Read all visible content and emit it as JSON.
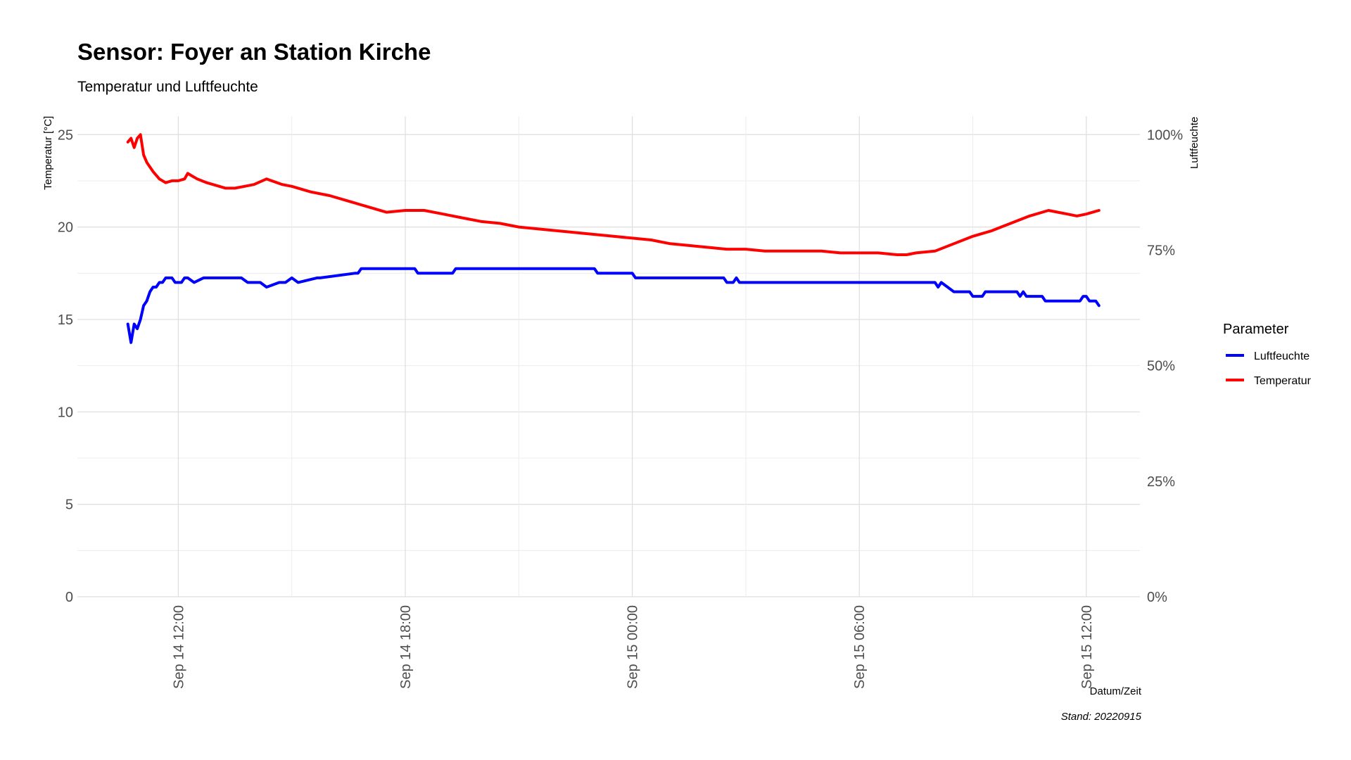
{
  "chart_data": {
    "type": "line",
    "title": "Sensor: Foyer an Station Kirche",
    "subtitle": "Temperatur und Luftfeuchte",
    "xlabel": "Datum/Zeit",
    "ylabel": "Temperatur [°C]",
    "y2label": "Luftfeuchte",
    "caption": "Stand: 20220915",
    "xlim": [
      "2022-09-14 09:20",
      "2022-09-15 13:25"
    ],
    "ylim": [
      0,
      26
    ],
    "y2lim": [
      0,
      1.04
    ],
    "grid": true,
    "legend_position": "right",
    "legend_title": "Parameter",
    "x_ticks": [
      {
        "t": "2022-09-14 12:00",
        "label": "Sep 14 12:00"
      },
      {
        "t": "2022-09-14 18:00",
        "label": "Sep 14 18:00"
      },
      {
        "t": "2022-09-15 00:00",
        "label": "Sep 15 00:00"
      },
      {
        "t": "2022-09-15 06:00",
        "label": "Sep 15 06:00"
      },
      {
        "t": "2022-09-15 12:00",
        "label": "Sep 15 12:00"
      }
    ],
    "y_ticks": [
      {
        "value": 0,
        "label": "0"
      },
      {
        "value": 5,
        "label": "5"
      },
      {
        "value": 10,
        "label": "10"
      },
      {
        "value": 15,
        "label": "15"
      },
      {
        "value": 20,
        "label": "20"
      },
      {
        "value": 25,
        "label": "25"
      }
    ],
    "y2_ticks": [
      {
        "value": 0,
        "label": "0%"
      },
      {
        "value": 0.25,
        "label": "25%"
      },
      {
        "value": 0.5,
        "label": "50%"
      },
      {
        "value": 0.75,
        "label": "75%"
      },
      {
        "value": 1.0,
        "label": "100%"
      }
    ],
    "series": [
      {
        "name": "Luftfeuchte",
        "axis": "right",
        "color": "#0000ff",
        "x": [
          "2022-09-14 10:40",
          "2022-09-14 10:45",
          "2022-09-14 10:50",
          "2022-09-14 10:55",
          "2022-09-14 11:00",
          "2022-09-14 11:05",
          "2022-09-14 11:10",
          "2022-09-14 11:15",
          "2022-09-14 11:20",
          "2022-09-14 11:25",
          "2022-09-14 11:30",
          "2022-09-14 11:35",
          "2022-09-14 11:40",
          "2022-09-14 11:45",
          "2022-09-14 11:50",
          "2022-09-14 11:55",
          "2022-09-14 12:05",
          "2022-09-14 12:10",
          "2022-09-14 12:15",
          "2022-09-14 12:25",
          "2022-09-14 12:40",
          "2022-09-14 13:40",
          "2022-09-14 13:50",
          "2022-09-14 14:00",
          "2022-09-14 14:10",
          "2022-09-14 14:20",
          "2022-09-14 14:40",
          "2022-09-14 14:45",
          "2022-09-14 14:50",
          "2022-09-14 15:00",
          "2022-09-14 15:10",
          "2022-09-14 15:40",
          "2022-09-14 15:45",
          "2022-09-14 16:40",
          "2022-09-14 16:45",
          "2022-09-14 16:50",
          "2022-09-14 18:15",
          "2022-09-14 18:20",
          "2022-09-14 19:15",
          "2022-09-14 19:20",
          "2022-09-14 23:00",
          "2022-09-14 23:05",
          "2022-09-15 00:00",
          "2022-09-15 00:05",
          "2022-09-15 02:25",
          "2022-09-15 02:30",
          "2022-09-15 02:40",
          "2022-09-15 02:45",
          "2022-09-15 02:50",
          "2022-09-15 08:00",
          "2022-09-15 08:05",
          "2022-09-15 08:10",
          "2022-09-15 08:20",
          "2022-09-15 08:30",
          "2022-09-15 08:55",
          "2022-09-15 09:00",
          "2022-09-15 09:15",
          "2022-09-15 09:20",
          "2022-09-15 10:10",
          "2022-09-15 10:15",
          "2022-09-15 10:20",
          "2022-09-15 10:25",
          "2022-09-15 10:50",
          "2022-09-15 10:55",
          "2022-09-15 11:50",
          "2022-09-15 11:55",
          "2022-09-15 12:00",
          "2022-09-15 12:05",
          "2022-09-15 12:15",
          "2022-09-15 12:20"
        ],
        "values": [
          0.59,
          0.55,
          0.59,
          0.58,
          0.6,
          0.63,
          0.64,
          0.66,
          0.67,
          0.67,
          0.68,
          0.68,
          0.69,
          0.69,
          0.69,
          0.68,
          0.68,
          0.69,
          0.69,
          0.68,
          0.69,
          0.69,
          0.68,
          0.68,
          0.68,
          0.67,
          0.68,
          0.68,
          0.68,
          0.69,
          0.68,
          0.69,
          0.69,
          0.7,
          0.7,
          0.71,
          0.71,
          0.7,
          0.7,
          0.71,
          0.71,
          0.7,
          0.7,
          0.69,
          0.69,
          0.68,
          0.68,
          0.69,
          0.68,
          0.68,
          0.67,
          0.68,
          0.67,
          0.66,
          0.66,
          0.65,
          0.65,
          0.66,
          0.66,
          0.65,
          0.66,
          0.65,
          0.65,
          0.64,
          0.64,
          0.65,
          0.65,
          0.64,
          0.64,
          0.63
        ]
      },
      {
        "name": "Temperatur",
        "axis": "left",
        "color": "#ff0000",
        "x": [
          "2022-09-14 10:40",
          "2022-09-14 10:45",
          "2022-09-14 10:50",
          "2022-09-14 10:55",
          "2022-09-14 11:00",
          "2022-09-14 11:05",
          "2022-09-14 11:10",
          "2022-09-14 11:20",
          "2022-09-14 11:30",
          "2022-09-14 11:40",
          "2022-09-14 11:50",
          "2022-09-14 11:55",
          "2022-09-14 12:00",
          "2022-09-14 12:10",
          "2022-09-14 12:15",
          "2022-09-14 12:20",
          "2022-09-14 12:30",
          "2022-09-14 12:45",
          "2022-09-14 13:15",
          "2022-09-14 13:30",
          "2022-09-14 13:45",
          "2022-09-14 14:00",
          "2022-09-14 14:20",
          "2022-09-14 14:45",
          "2022-09-14 15:00",
          "2022-09-14 15:30",
          "2022-09-14 16:00",
          "2022-09-14 16:30",
          "2022-09-14 17:00",
          "2022-09-14 17:30",
          "2022-09-14 18:00",
          "2022-09-14 18:30",
          "2022-09-14 19:00",
          "2022-09-14 19:30",
          "2022-09-14 20:00",
          "2022-09-14 20:30",
          "2022-09-14 21:00",
          "2022-09-14 21:30",
          "2022-09-14 22:00",
          "2022-09-14 22:30",
          "2022-09-14 23:00",
          "2022-09-14 23:30",
          "2022-09-15 00:00",
          "2022-09-15 00:30",
          "2022-09-15 01:00",
          "2022-09-15 01:30",
          "2022-09-15 02:00",
          "2022-09-15 02:30",
          "2022-09-15 03:00",
          "2022-09-15 03:30",
          "2022-09-15 04:00",
          "2022-09-15 04:30",
          "2022-09-15 05:00",
          "2022-09-15 05:30",
          "2022-09-15 06:00",
          "2022-09-15 06:30",
          "2022-09-15 07:00",
          "2022-09-15 07:15",
          "2022-09-15 07:30",
          "2022-09-15 08:00",
          "2022-09-15 08:30",
          "2022-09-15 09:00",
          "2022-09-15 09:30",
          "2022-09-15 10:00",
          "2022-09-15 10:30",
          "2022-09-15 11:00",
          "2022-09-15 11:15",
          "2022-09-15 11:30",
          "2022-09-15 11:45",
          "2022-09-15 12:00",
          "2022-09-15 12:10",
          "2022-09-15 12:20"
        ],
        "values": [
          24.6,
          24.8,
          24.3,
          24.8,
          25.0,
          23.9,
          23.5,
          23.0,
          22.6,
          22.4,
          22.5,
          22.5,
          22.5,
          22.6,
          22.9,
          22.8,
          22.6,
          22.4,
          22.1,
          22.1,
          22.2,
          22.3,
          22.6,
          22.3,
          22.2,
          21.9,
          21.7,
          21.4,
          21.1,
          20.8,
          20.9,
          20.9,
          20.7,
          20.5,
          20.3,
          20.2,
          20.0,
          19.9,
          19.8,
          19.7,
          19.6,
          19.5,
          19.4,
          19.3,
          19.1,
          19.0,
          18.9,
          18.8,
          18.8,
          18.7,
          18.7,
          18.7,
          18.7,
          18.6,
          18.6,
          18.6,
          18.5,
          18.5,
          18.6,
          18.7,
          19.1,
          19.5,
          19.8,
          20.2,
          20.6,
          20.9,
          20.8,
          20.7,
          20.6,
          20.7,
          20.8,
          20.9
        ]
      }
    ]
  }
}
